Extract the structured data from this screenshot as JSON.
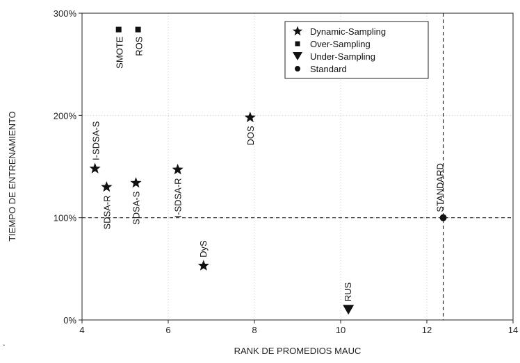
{
  "chart_data": {
    "type": "scatter",
    "xlabel": "RANK DE PROMEDIOS MAUC",
    "ylabel": "TIEMPO DE ENTRENAMIENTO",
    "xlim": [
      4,
      14
    ],
    "ylim": [
      0,
      300
    ],
    "x_ticks": [
      4,
      6,
      8,
      10,
      12,
      14
    ],
    "y_ticks": [
      0,
      100,
      200,
      300
    ],
    "y_tick_labels": [
      "0%",
      "100%",
      "200%",
      "300%"
    ],
    "grid": "dotted",
    "legend_position": "top-right",
    "legend": [
      {
        "label": "Dynamic-Sampling",
        "marker": "star"
      },
      {
        "label": "Over-Sampling",
        "marker": "square"
      },
      {
        "label": "Under-Sampling",
        "marker": "triangle-down"
      },
      {
        "label": "Standard",
        "marker": "circle"
      }
    ],
    "reference_lines": {
      "x": 12.38,
      "y": 100
    },
    "points": [
      {
        "label": "SMOTE",
        "x": 4.85,
        "y": 284,
        "marker": "square"
      },
      {
        "label": "ROS",
        "x": 5.3,
        "y": 284,
        "marker": "square"
      },
      {
        "label": "I-SDSA-S",
        "x": 4.3,
        "y": 148,
        "marker": "star"
      },
      {
        "label": "SDSA-R",
        "x": 4.57,
        "y": 130,
        "marker": "star"
      },
      {
        "label": "SDSA-S",
        "x": 5.25,
        "y": 134,
        "marker": "star"
      },
      {
        "label": "I-SDSA-R",
        "x": 6.22,
        "y": 147,
        "marker": "star"
      },
      {
        "label": "DyS",
        "x": 6.82,
        "y": 53,
        "marker": "star"
      },
      {
        "label": "DOS",
        "x": 7.9,
        "y": 198,
        "marker": "star"
      },
      {
        "label": "RUS",
        "x": 10.18,
        "y": 10,
        "marker": "triangle-down"
      },
      {
        "label": "STANDARD",
        "x": 12.38,
        "y": 100,
        "marker": "circle"
      }
    ]
  },
  "stray_mark": "."
}
